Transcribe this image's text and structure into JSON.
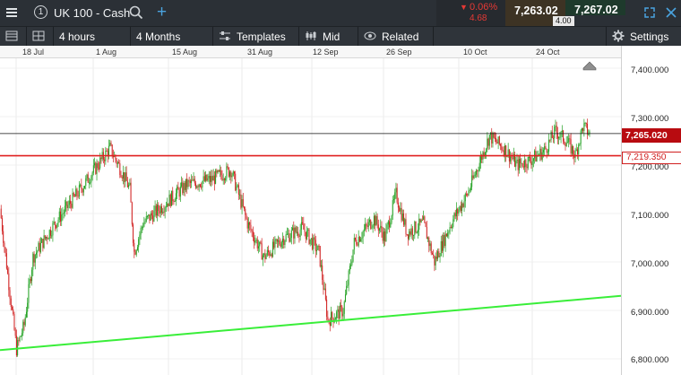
{
  "header": {
    "menu_icon": "hamburger-icon",
    "instrument_number": "1",
    "instrument_name": "UK 100 - Cash",
    "change_pct": "0.06%",
    "change_abs": "4.68",
    "bid": "7,263.02",
    "ask": "7,267.02",
    "spread": "4.00"
  },
  "toolbar": {
    "interval": "4 hours",
    "range": "4 Months",
    "templates": "Templates",
    "price_type": "Mid",
    "related": "Related",
    "settings": "Settings"
  },
  "dates": [
    "18 Jul",
    "1 Aug",
    "15 Aug",
    "31 Aug",
    "12 Sep",
    "26 Sep",
    "10 Oct",
    "24 Oct"
  ],
  "price_axis": [
    "7,400.000",
    "7,300.000",
    "7,200.000",
    "7,100.000",
    "7,000.000",
    "6,900.000",
    "6,800.000"
  ],
  "current_price_label": "7,265.020",
  "line_price_label": "7,219.350",
  "colors": {
    "up": "#21a021",
    "down": "#d01f1f",
    "trend": "#39ee39",
    "level": "#e02020",
    "current": "#b80b10"
  },
  "chart_data": {
    "type": "candlestick",
    "ylim": [
      6790,
      7430
    ],
    "levels": {
      "current": 7265.02,
      "horizontal": 7219.35
    },
    "trendline": {
      "from": [
        0,
        6818
      ],
      "to": [
        1,
        6930
      ]
    },
    "keypoints": [
      [
        0,
        7110
      ],
      [
        15,
        6820
      ],
      [
        22,
        6870
      ],
      [
        30,
        7010
      ],
      [
        50,
        7080
      ],
      [
        70,
        7140
      ],
      [
        92,
        7210
      ],
      [
        100,
        7235
      ],
      [
        110,
        7190
      ],
      [
        118,
        7150
      ],
      [
        122,
        7020
      ],
      [
        130,
        7080
      ],
      [
        150,
        7120
      ],
      [
        170,
        7160
      ],
      [
        192,
        7170
      ],
      [
        210,
        7190
      ],
      [
        225,
        7080
      ],
      [
        240,
        7010
      ],
      [
        258,
        7050
      ],
      [
        275,
        7070
      ],
      [
        290,
        7020
      ],
      [
        298,
        6880
      ],
      [
        312,
        6900
      ],
      [
        322,
        7040
      ],
      [
        340,
        7090
      ],
      [
        350,
        7050
      ],
      [
        360,
        7140
      ],
      [
        370,
        7060
      ],
      [
        385,
        7080
      ],
      [
        395,
        7000
      ],
      [
        410,
        7080
      ],
      [
        425,
        7140
      ],
      [
        445,
        7260
      ],
      [
        460,
        7230
      ],
      [
        470,
        7200
      ],
      [
        482,
        7210
      ],
      [
        495,
        7230
      ],
      [
        505,
        7270
      ],
      [
        515,
        7250
      ],
      [
        523,
        7220
      ],
      [
        530,
        7280
      ],
      [
        536,
        7265
      ]
    ]
  }
}
